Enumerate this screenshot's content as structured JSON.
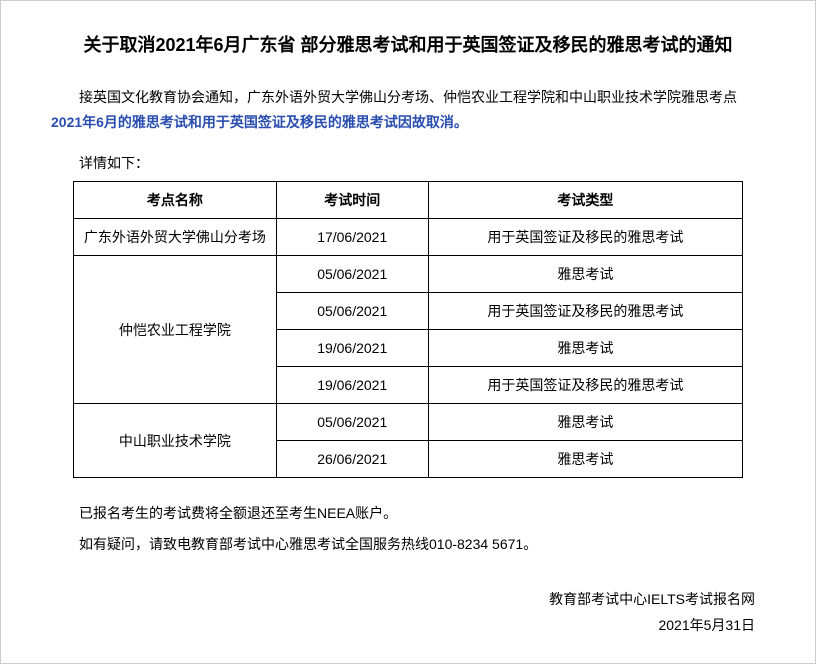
{
  "title": "关于取消2021年6月广东省 部分雅思考试和用于英国签证及移民的雅思考试的通知",
  "intro_prefix": "接英国文化教育协会通知，广东外语外贸大学佛山分考场、仲恺农业工程学院和中山职业技术学院雅思考点",
  "intro_highlight": "2021年6月的雅思考试和用于英国签证及移民的雅思考试因故取消。",
  "details_label": "详情如下：",
  "table": {
    "headers": {
      "name": "考点名称",
      "date": "考试时间",
      "type": "考试类型"
    },
    "rows": [
      {
        "name": "广东外语外贸大学佛山分考场",
        "date": "17/06/2021",
        "type": "用于英国签证及移民的雅思考试",
        "name_rowspan": 1
      },
      {
        "name": "仲恺农业工程学院",
        "date": "05/06/2021",
        "type": "雅思考试",
        "name_rowspan": 4
      },
      {
        "date": "05/06/2021",
        "type": "用于英国签证及移民的雅思考试"
      },
      {
        "date": "19/06/2021",
        "type": "雅思考试"
      },
      {
        "date": "19/06/2021",
        "type": "用于英国签证及移民的雅思考试"
      },
      {
        "name": "中山职业技术学院",
        "date": "05/06/2021",
        "type": "雅思考试",
        "name_rowspan": 2
      },
      {
        "date": "26/06/2021",
        "type": "雅思考试"
      }
    ]
  },
  "footer_note1": "已报名考生的考试费将全额退还至考生NEEA账户。",
  "footer_note2": "如有疑问，请致电教育部考试中心雅思考试全国服务热线010-8234 5671。",
  "signature_org": "教育部考试中心IELTS考试报名网",
  "signature_date": "2021年5月31日",
  "colors": {
    "background": "#ffffff",
    "text": "#000000",
    "highlight": "#2a4db0",
    "border": "#000000"
  }
}
